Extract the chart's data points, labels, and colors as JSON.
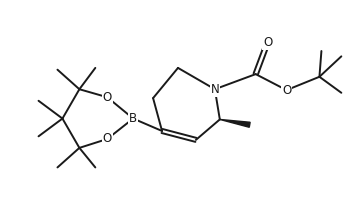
{
  "bg": "#ffffff",
  "lc": "#1a1a1a",
  "lw": 1.4,
  "fs": 8.0,
  "figsize": [
    3.5,
    2.14
  ],
  "dpi": 100,
  "xlim": [
    -0.5,
    10.5
  ],
  "ylim": [
    0.0,
    6.0
  ]
}
